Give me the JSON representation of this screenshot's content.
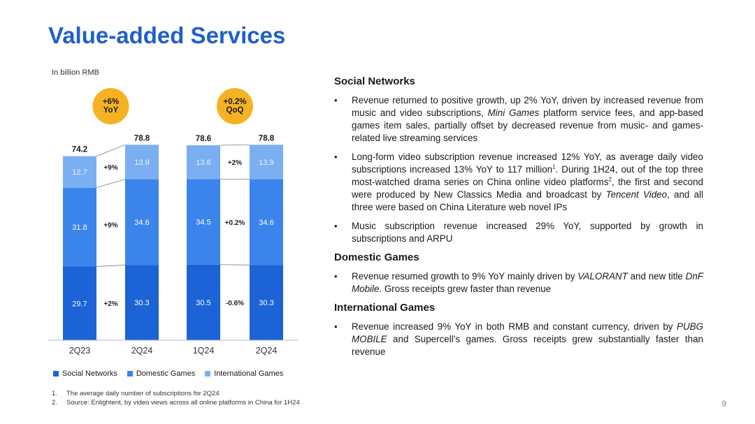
{
  "page": {
    "title": "Value-added Services",
    "unit_note": "In billion RMB",
    "page_number": "9"
  },
  "chart_data": {
    "type": "bar",
    "stacked": true,
    "unit": "In billion RMB",
    "groups": [
      {
        "categories": [
          "2Q23",
          "2Q24"
        ],
        "badge": [
          "+6%",
          "YoY"
        ],
        "series": [
          {
            "name": "Social Networks",
            "values": [
              29.7,
              30.3
            ],
            "color": "#1b63d6"
          },
          {
            "name": "Domestic Games",
            "values": [
              31.8,
              34.6
            ],
            "color": "#3b84ec"
          },
          {
            "name": "International Games",
            "values": [
              12.7,
              13.9
            ],
            "color": "#7ab0f2"
          }
        ],
        "totals": [
          "74.2",
          "78.8"
        ],
        "changes": [
          "+2%",
          "+9%",
          "+9%"
        ]
      },
      {
        "categories": [
          "1Q24",
          "2Q24"
        ],
        "badge": [
          "+0.2%",
          "QoQ"
        ],
        "series": [
          {
            "name": "Social Networks",
            "values": [
              30.5,
              30.3
            ],
            "color": "#1b63d6"
          },
          {
            "name": "Domestic Games",
            "values": [
              34.5,
              34.6
            ],
            "color": "#3b84ec"
          },
          {
            "name": "International Games",
            "values": [
              13.6,
              13.9
            ],
            "color": "#7ab0f2"
          }
        ],
        "totals": [
          "78.6",
          "78.8"
        ],
        "changes": [
          "-0.6%",
          "+0.2%",
          "+2%"
        ]
      }
    ],
    "legend": [
      "Social Networks",
      "Domestic Games",
      "International Games"
    ],
    "legend_placement": "bottom",
    "grid": false,
    "badge_color": "#f5b323"
  },
  "text_panel": {
    "sections": [
      {
        "heading": "Social Networks",
        "bullets": [
          {
            "parts": [
              {
                "t": "Revenue returned to positive growth, up 2% YoY, driven by increased revenue from music and video subscriptions, "
              },
              {
                "t": "Mini Games",
                "i": true
              },
              {
                "t": " platform service fees, and app-based games item sales, partially offset by decreased revenue from music- and games-related live streaming services"
              }
            ]
          },
          {
            "parts": [
              {
                "t": "Long-form video subscription revenue increased 12% YoY, as average daily video subscriptions increased 13% YoY to 117 million"
              },
              {
                "t": "1",
                "sup": true
              },
              {
                "t": ". During 1H24, out of the top three most-watched drama series on China online video platforms"
              },
              {
                "t": "2",
                "sup": true
              },
              {
                "t": ", the first and second were produced by New Classics Media and broadcast by "
              },
              {
                "t": "Tencent Video",
                "i": true
              },
              {
                "t": ", and all three were based on China Literature web novel IPs"
              }
            ]
          },
          {
            "parts": [
              {
                "t": "Music subscription revenue increased 29% YoY, supported by growth in subscriptions and ARPU"
              }
            ]
          }
        ]
      },
      {
        "heading": "Domestic Games",
        "bullets": [
          {
            "parts": [
              {
                "t": "Revenue resumed growth to 9% YoY mainly driven by "
              },
              {
                "t": "VALORANT",
                "i": true
              },
              {
                "t": " and new title "
              },
              {
                "t": "DnF Mobile",
                "i": true
              },
              {
                "t": ". Gross receipts grew faster than revenue"
              }
            ]
          }
        ]
      },
      {
        "heading": "International Games",
        "bullets": [
          {
            "parts": [
              {
                "t": "Revenue increased 9% YoY in both RMB and constant currency, driven by "
              },
              {
                "t": "PUBG MOBILE",
                "i": true
              },
              {
                "t": " and Supercell’s games. Gross receipts grew substantially faster than revenue"
              }
            ]
          }
        ]
      }
    ]
  },
  "footnotes": [
    {
      "num": "1.",
      "text": "The average daily number of subscriptions for 2Q24"
    },
    {
      "num": "2.",
      "text": "Source: Enlightent, by video views across all online platforms in China for 1H24"
    }
  ]
}
